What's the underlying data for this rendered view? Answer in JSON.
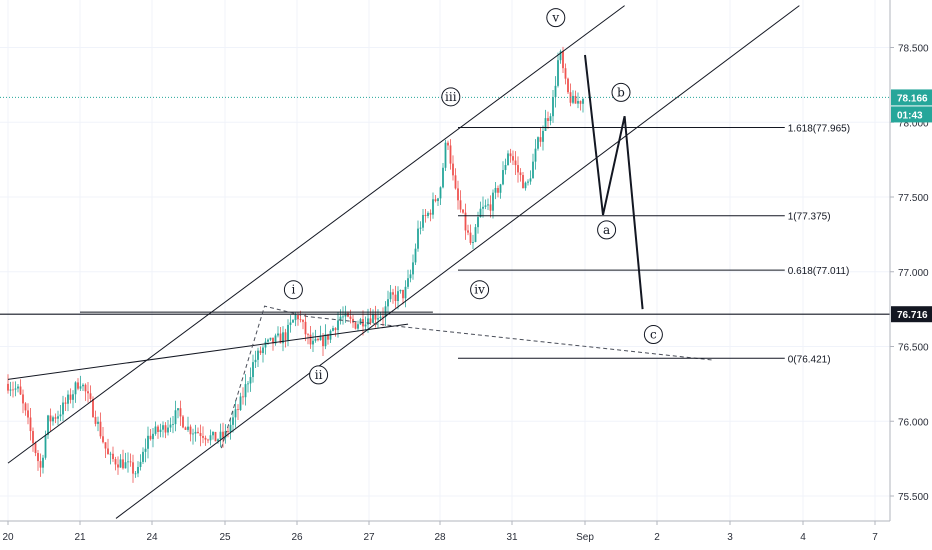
{
  "chart_data": {
    "type": "candlestick",
    "colors": {
      "up": "#26a69a",
      "down": "#ef5350",
      "current_price": "#26a69a",
      "drawing": "#131722"
    },
    "x_axis": {
      "ticks": [
        {
          "label": "20",
          "day": 0
        },
        {
          "label": "21",
          "day": 1
        },
        {
          "label": "24",
          "day": 2
        },
        {
          "label": "25",
          "day": 3
        },
        {
          "label": "26",
          "day": 4
        },
        {
          "label": "27",
          "day": 5
        },
        {
          "label": "28",
          "day": 6
        },
        {
          "label": "31",
          "day": 7
        },
        {
          "label": "Sep",
          "day": 8
        },
        {
          "label": "2",
          "day": 9
        },
        {
          "label": "3",
          "day": 10
        },
        {
          "label": "4",
          "day": 11
        },
        {
          "label": "7",
          "day": 12
        }
      ]
    },
    "y_axis": {
      "range": [
        75.35,
        78.78
      ],
      "ticks": [
        "75.500",
        "76.000",
        "76.500",
        "77.000",
        "77.500",
        "78.000",
        "78.500"
      ]
    },
    "price_path": [
      [
        0.0,
        76.25
      ],
      [
        0.15,
        76.2
      ],
      [
        0.3,
        75.95
      ],
      [
        0.45,
        75.68
      ],
      [
        0.55,
        76.0
      ],
      [
        0.7,
        76.05
      ],
      [
        0.85,
        76.15
      ],
      [
        1.0,
        76.28
      ],
      [
        1.2,
        76.05
      ],
      [
        1.4,
        75.75
      ],
      [
        1.6,
        75.72
      ],
      [
        1.8,
        75.65
      ],
      [
        1.95,
        75.9
      ],
      [
        2.15,
        75.95
      ],
      [
        2.35,
        76.05
      ],
      [
        2.5,
        75.95
      ],
      [
        2.7,
        75.92
      ],
      [
        2.85,
        75.88
      ],
      [
        3.0,
        75.9
      ],
      [
        3.2,
        76.1
      ],
      [
        3.4,
        76.4
      ],
      [
        3.55,
        76.5
      ],
      [
        3.75,
        76.55
      ],
      [
        3.85,
        76.58
      ],
      [
        4.0,
        76.72
      ],
      [
        4.2,
        76.5
      ],
      [
        4.4,
        76.55
      ],
      [
        4.6,
        76.7
      ],
      [
        4.8,
        76.65
      ],
      [
        5.0,
        76.7
      ],
      [
        5.2,
        76.72
      ],
      [
        5.3,
        76.82
      ],
      [
        5.45,
        76.85
      ],
      [
        5.5,
        76.85
      ],
      [
        5.6,
        77.0
      ],
      [
        5.7,
        77.3
      ],
      [
        5.85,
        77.4
      ],
      [
        6.0,
        77.55
      ],
      [
        6.1,
        77.92
      ],
      [
        6.2,
        77.55
      ],
      [
        6.35,
        77.3
      ],
      [
        6.45,
        77.15
      ],
      [
        6.55,
        77.4
      ],
      [
        6.7,
        77.45
      ],
      [
        6.85,
        77.6
      ],
      [
        6.95,
        77.82
      ],
      [
        7.05,
        77.7
      ],
      [
        7.2,
        77.55
      ],
      [
        7.35,
        77.85
      ],
      [
        7.45,
        78.0
      ],
      [
        7.55,
        78.1
      ],
      [
        7.65,
        78.48
      ],
      [
        7.75,
        78.2
      ],
      [
        7.85,
        78.12
      ],
      [
        8.0,
        78.17
      ]
    ],
    "current_price": {
      "value": 78.166,
      "label": "78.166",
      "countdown": "01:43"
    },
    "horizontal_level": {
      "value": 76.716,
      "label": "76.716"
    },
    "fibonacci": {
      "start_day": 6.25,
      "end_day": 10.75,
      "levels": [
        {
          "label": "1.618(77.965)",
          "value": 77.965
        },
        {
          "label": "1(77.375)",
          "value": 77.375
        },
        {
          "label": "0.618(77.011)",
          "value": 77.011
        },
        {
          "label": "0(76.421)",
          "value": 76.421
        }
      ]
    },
    "channel_lines": [
      {
        "from": [
          0.0,
          75.72
        ],
        "to": [
          8.55,
          78.78
        ]
      },
      {
        "from": [
          1.5,
          75.35
        ],
        "to": [
          10.95,
          78.78
        ]
      },
      {
        "from": [
          0.0,
          76.28
        ],
        "to": [
          5.55,
          76.65
        ]
      },
      {
        "from": [
          1.0,
          76.73
        ],
        "to": [
          5.9,
          76.73
        ]
      }
    ],
    "dashed_lines": [
      [
        [
          2.95,
          75.82
        ],
        [
          3.55,
          76.77
        ],
        [
          4.15,
          76.7
        ],
        [
          9.75,
          76.41
        ]
      ]
    ],
    "projection": [
      [
        8.0,
        78.45
      ],
      [
        8.25,
        77.38
      ],
      [
        8.55,
        78.04
      ],
      [
        8.8,
        76.75
      ]
    ],
    "wave_labels": [
      {
        "text": "i",
        "day": 3.95,
        "price": 76.88
      },
      {
        "text": "ii",
        "day": 4.3,
        "price": 76.31
      },
      {
        "text": "iii",
        "day": 6.15,
        "price": 78.17
      },
      {
        "text": "iv",
        "day": 6.55,
        "price": 76.88
      },
      {
        "text": "v",
        "day": 7.6,
        "price": 78.7
      },
      {
        "text": "a",
        "day": 8.3,
        "price": 77.28
      },
      {
        "text": "b",
        "day": 8.5,
        "price": 78.2
      },
      {
        "text": "c",
        "day": 8.95,
        "price": 76.58
      }
    ]
  }
}
